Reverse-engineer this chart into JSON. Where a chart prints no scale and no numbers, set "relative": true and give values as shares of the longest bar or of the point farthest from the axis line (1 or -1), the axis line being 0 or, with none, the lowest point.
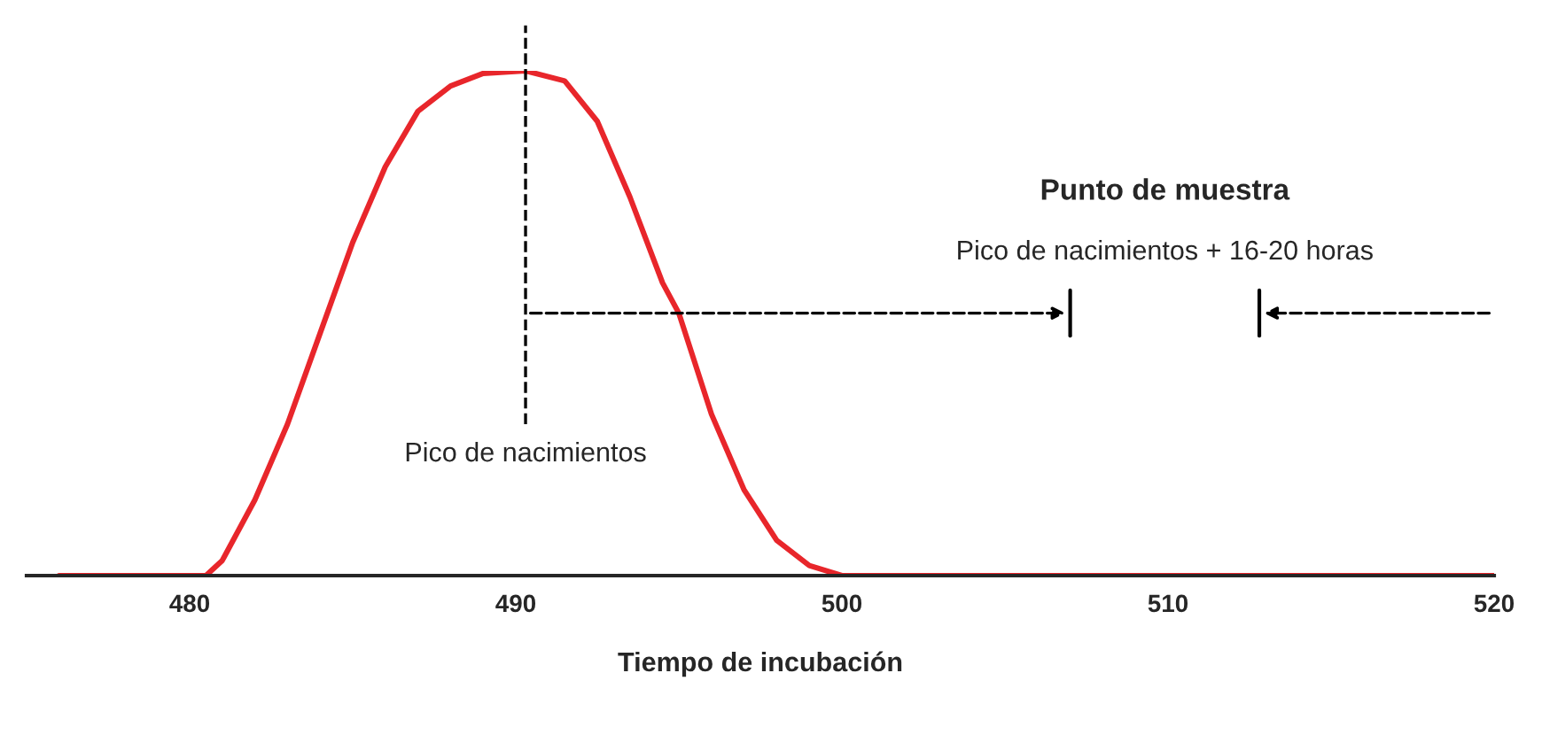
{
  "chart_data": {
    "type": "line",
    "relative": true,
    "xlabel": "Tiempo de incubación",
    "x": [
      476,
      480.5,
      481,
      482,
      483,
      484,
      485,
      486,
      487,
      488,
      489,
      490.3,
      491.5,
      492.5,
      493.5,
      494.5,
      495,
      496,
      497,
      498,
      499,
      500,
      505,
      510,
      515,
      520
    ],
    "series": [
      {
        "color": "#e8262b",
        "values": [
          0,
          0,
          0.03,
          0.15,
          0.3,
          0.48,
          0.66,
          0.81,
          0.92,
          0.97,
          0.995,
          1,
          0.98,
          0.9,
          0.75,
          0.58,
          0.52,
          0.32,
          0.17,
          0.07,
          0.02,
          0,
          0,
          0,
          0,
          0
        ]
      }
    ],
    "xlim": [
      475,
      520
    ],
    "xticks": [
      480,
      490,
      500,
      510,
      520
    ],
    "ref_lines": [
      {
        "axis": "x",
        "value": 490.3,
        "label": "Pico de nacimientos",
        "line_style": "dashed",
        "color": "#000000"
      },
      {
        "axis": "x",
        "value": 507,
        "line_style": "solid",
        "color": "#000000"
      },
      {
        "axis": "x",
        "value": 512.8,
        "line_style": "solid",
        "color": "#000000"
      }
    ],
    "annotations": [
      "Pico de nacimientos + 16-20 horas",
      "Punto de muestra"
    ],
    "grid": false,
    "marker": "none",
    "line_style": "solid"
  }
}
